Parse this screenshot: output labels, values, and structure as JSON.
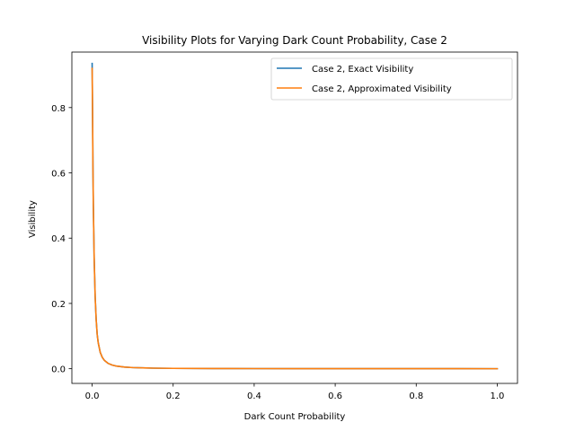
{
  "chart_data": {
    "type": "line",
    "title": "Visibility Plots for Varying Dark Count Probability, Case 2",
    "xlabel": "Dark Count Probability",
    "ylabel": "Visibility",
    "xlim": [
      -0.05,
      1.05
    ],
    "ylim": [
      -0.045,
      0.97
    ],
    "xticks": [
      0.0,
      0.2,
      0.4,
      0.6,
      0.8,
      1.0
    ],
    "xtick_labels": [
      "0.0",
      "0.2",
      "0.4",
      "0.6",
      "0.8",
      "1.0"
    ],
    "yticks": [
      0.0,
      0.2,
      0.4,
      0.6,
      0.8
    ],
    "ytick_labels": [
      "0.0",
      "0.2",
      "0.4",
      "0.6",
      "0.8"
    ],
    "grid": false,
    "legend_position": "top-right",
    "x": [
      0.0,
      0.001,
      0.002,
      0.003,
      0.005,
      0.0075,
      0.01,
      0.0125,
      0.015,
      0.02,
      0.025,
      0.03,
      0.04,
      0.05,
      0.06,
      0.08,
      0.1,
      0.125,
      0.15,
      0.2,
      0.3,
      0.4,
      0.5,
      0.6,
      0.7,
      0.8,
      0.9,
      1.0
    ],
    "series": [
      {
        "name": "Case 2, Exact Visibility",
        "color": "#1f77b4",
        "values": [
          0.935,
          0.795,
          0.62,
          0.5,
          0.34,
          0.22,
          0.15,
          0.105,
          0.08,
          0.05,
          0.035,
          0.026,
          0.016,
          0.011,
          0.008,
          0.005,
          0.0035,
          0.0025,
          0.0018,
          0.0011,
          0.0006,
          0.0004,
          0.0003,
          0.0002,
          0.00015,
          0.0001,
          8e-05,
          5e-05
        ]
      },
      {
        "name": "Case 2, Approximated Visibility",
        "color": "#ff7f0e",
        "values": [
          0.92,
          0.79,
          0.615,
          0.5,
          0.34,
          0.22,
          0.15,
          0.105,
          0.08,
          0.05,
          0.035,
          0.026,
          0.016,
          0.011,
          0.008,
          0.005,
          0.0035,
          0.0025,
          0.0018,
          0.0011,
          0.0006,
          0.0004,
          0.0003,
          0.0002,
          0.00015,
          0.0001,
          8e-05,
          5e-05
        ]
      }
    ]
  }
}
